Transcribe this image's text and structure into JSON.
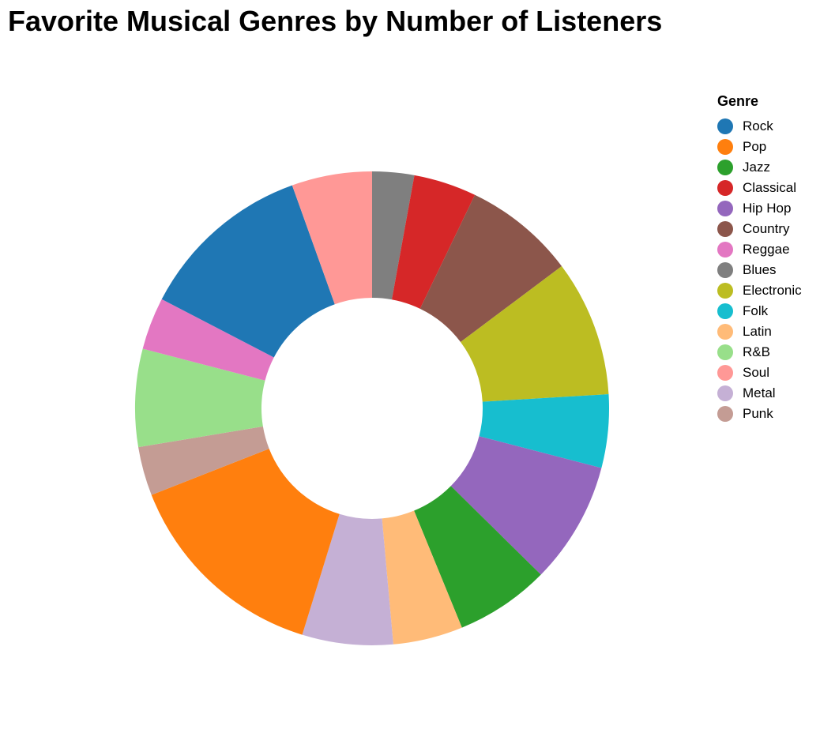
{
  "chart_data": {
    "type": "pie",
    "title": "Favorite Musical Genres by Number of Listeners",
    "legend_title": "Genre",
    "legend_position": "right",
    "donut": true,
    "categories": [
      "Rock",
      "Pop",
      "Jazz",
      "Classical",
      "Hip Hop",
      "Country",
      "Reggae",
      "Blues",
      "Electronic",
      "Folk",
      "Latin",
      "R&B",
      "Soul",
      "Metal",
      "Punk"
    ],
    "values": [
      250,
      300,
      135,
      90,
      175,
      160,
      75,
      60,
      195,
      105,
      100,
      140,
      115,
      130,
      70
    ],
    "colors": [
      "#1f77b4",
      "#ff7f0e",
      "#2ca02c",
      "#d62728",
      "#9467bd",
      "#8c564b",
      "#e377c2",
      "#7f7f7f",
      "#bcbd22",
      "#17becf",
      "#ffbb78",
      "#98df8a",
      "#ff9896",
      "#c5b0d5",
      "#c49c94"
    ],
    "slice_order": [
      "Blues",
      "Classical",
      "Country",
      "Electronic",
      "Folk",
      "Hip Hop",
      "Jazz",
      "Latin",
      "Metal",
      "Pop",
      "Punk",
      "R&B",
      "Reggae",
      "Rock",
      "Soul"
    ]
  }
}
